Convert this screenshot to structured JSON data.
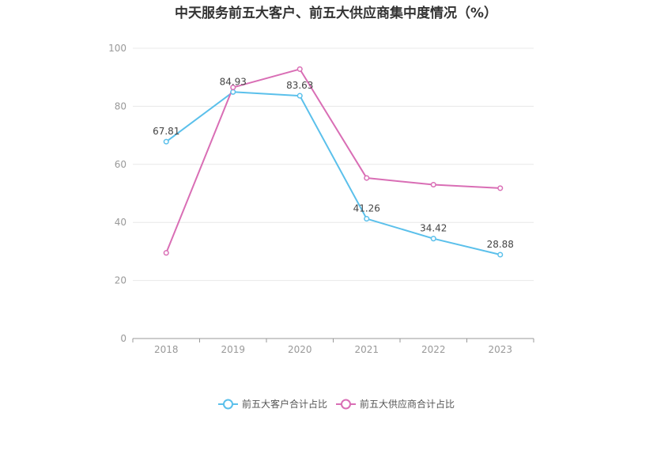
{
  "chart_data": {
    "type": "line",
    "title": "中天服务前五大客户、前五大供应商集中度情况（%）",
    "xlabel": "",
    "ylabel": "",
    "categories": [
      "2018",
      "2019",
      "2020",
      "2021",
      "2022",
      "2023"
    ],
    "ylim": [
      0,
      100
    ],
    "yticks": [
      0,
      20,
      40,
      60,
      80,
      100
    ],
    "grid": true,
    "legend_position": "bottom",
    "series": [
      {
        "name": "前五大客户合计占比",
        "color": "#5bc0eb",
        "values": [
          67.81,
          84.93,
          83.63,
          41.26,
          34.42,
          28.88
        ],
        "labels": [
          "67.81",
          "84.93",
          "83.63",
          "41.26",
          "34.42",
          "28.88"
        ]
      },
      {
        "name": "前五大供应商合计占比",
        "color": "#d96eb5",
        "values": [
          29.5,
          86.5,
          92.8,
          55.3,
          53.0,
          51.8
        ]
      }
    ]
  }
}
